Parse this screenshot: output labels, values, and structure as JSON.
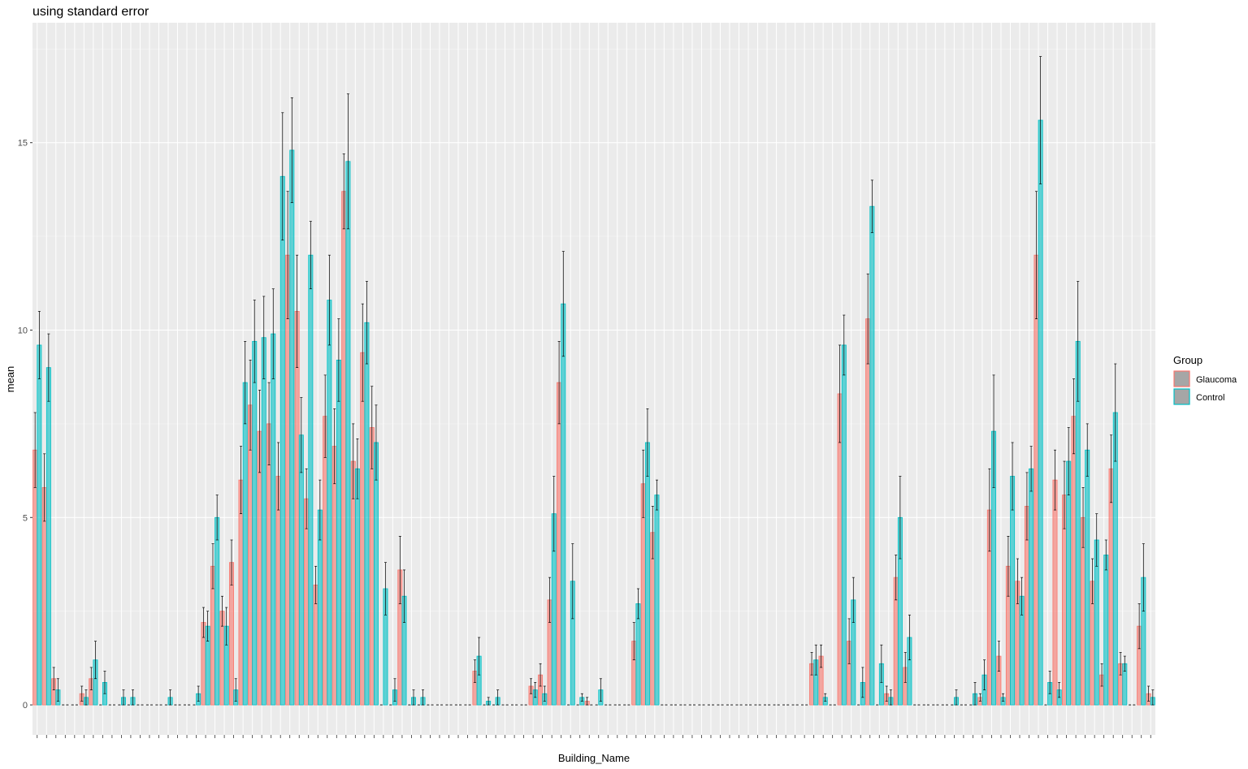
{
  "chart_data": {
    "type": "bar",
    "title": "using standard error",
    "x_label": "Building_Name",
    "y_label": "mean",
    "legend_title": "Group",
    "ylim": [
      -0.8,
      18.2
    ],
    "yticks": [
      0,
      5,
      10,
      15
    ],
    "grid": true,
    "categories": [
      null,
      null,
      null,
      null,
      null,
      null,
      null,
      null,
      null,
      null,
      null,
      null,
      null,
      null,
      null,
      null,
      null,
      null,
      null,
      null,
      null,
      null,
      null,
      null,
      null,
      null,
      null,
      null,
      null,
      null,
      null,
      null,
      null,
      null,
      null,
      null,
      null,
      null,
      null,
      null,
      null,
      null,
      null,
      null,
      null,
      null,
      null,
      null,
      null,
      null,
      null,
      null,
      null,
      null,
      null,
      null,
      null,
      null,
      null,
      null,
      null,
      null,
      null,
      null,
      null,
      null,
      null,
      null,
      null,
      null,
      null,
      null,
      null,
      null,
      null,
      null,
      null,
      null,
      null,
      null,
      null,
      null,
      null,
      null,
      null,
      null,
      null,
      null,
      null,
      null,
      null,
      null,
      null,
      null,
      null,
      null,
      null,
      null,
      null,
      null,
      null,
      null,
      null,
      null,
      null,
      null,
      null,
      null,
      null,
      null,
      null,
      null,
      null,
      null,
      null,
      null,
      null,
      null,
      null,
      null
    ],
    "series": [
      {
        "name": "Glaucoma",
        "color": "#F8766D",
        "values": [
          6.8,
          5.8,
          0.7,
          0,
          0,
          0.3,
          0.7,
          0,
          0,
          0,
          0,
          0,
          0,
          0,
          0,
          0,
          0,
          0,
          2.2,
          3.7,
          2.5,
          3.8,
          6.0,
          8.0,
          7.3,
          7.5,
          6.1,
          12.0,
          10.5,
          5.5,
          3.2,
          7.7,
          6.9,
          13.7,
          6.5,
          9.4,
          7.4,
          0,
          0,
          3.6,
          0,
          0,
          0,
          0,
          0,
          0,
          0,
          0.9,
          0,
          0,
          0,
          0,
          0,
          0.5,
          0.8,
          2.8,
          8.6,
          0,
          0,
          0.1,
          0,
          0,
          0,
          0,
          1.7,
          5.9,
          4.6,
          0,
          0,
          0,
          0,
          0,
          0,
          0,
          0,
          0,
          0,
          0,
          0,
          0,
          0,
          0,
          0,
          1.1,
          1.3,
          0,
          8.3,
          1.7,
          0,
          10.3,
          0,
          0.3,
          3.4,
          1.0,
          0,
          0,
          0,
          0,
          0,
          0,
          0,
          0.2,
          5.2,
          1.3,
          3.7,
          3.3,
          5.3,
          12.0,
          0,
          6.0,
          5.6,
          7.7,
          5.0,
          3.3,
          0.8,
          6.3,
          1.1,
          0,
          2.1,
          0.3
        ],
        "errors": [
          1.0,
          0.9,
          0.3,
          0,
          0,
          0.2,
          0.3,
          0,
          0,
          0,
          0,
          0,
          0,
          0,
          0,
          0,
          0,
          0,
          0.4,
          0.6,
          0.4,
          0.6,
          0.9,
          1.2,
          1.1,
          1.1,
          0.9,
          1.7,
          1.5,
          0.8,
          0.5,
          1.1,
          1.0,
          1.0,
          1.0,
          1.3,
          1.1,
          0,
          0,
          0.9,
          0,
          0,
          0,
          0,
          0,
          0,
          0,
          0.3,
          0,
          0,
          0,
          0,
          0,
          0.2,
          0.3,
          0.6,
          1.1,
          0,
          0,
          0.1,
          0,
          0,
          0,
          0,
          0.5,
          0.9,
          0.7,
          0,
          0,
          0,
          0,
          0,
          0,
          0,
          0,
          0,
          0,
          0,
          0,
          0,
          0,
          0,
          0,
          0.3,
          0.3,
          0,
          1.3,
          0.6,
          0,
          1.2,
          0,
          0.2,
          0.6,
          0.4,
          0,
          0,
          0,
          0,
          0,
          0,
          0,
          0.1,
          1.1,
          0.4,
          0.8,
          0.6,
          0.9,
          1.7,
          0,
          0.8,
          0.9,
          1.0,
          0.8,
          0.6,
          0.3,
          0.9,
          0.3,
          0,
          0.6,
          0.2
        ]
      },
      {
        "name": "Control",
        "color": "#00BFC4",
        "values": [
          9.6,
          9.0,
          0.4,
          0,
          0,
          0.2,
          1.2,
          0.6,
          0,
          0.2,
          0.2,
          0,
          0,
          0,
          0.2,
          0,
          0,
          0.3,
          2.1,
          5.0,
          2.1,
          0.4,
          8.6,
          9.7,
          9.8,
          9.9,
          14.1,
          14.8,
          7.2,
          12.0,
          5.2,
          10.8,
          9.2,
          14.5,
          6.3,
          10.2,
          7.0,
          3.1,
          0.4,
          2.9,
          0.2,
          0.2,
          0,
          0,
          0,
          0,
          0,
          1.3,
          0.1,
          0.2,
          0,
          0,
          0,
          0.4,
          0.3,
          5.1,
          10.7,
          3.3,
          0.2,
          0,
          0.4,
          0,
          0,
          0,
          2.7,
          7.0,
          5.6,
          0,
          0,
          0,
          0,
          0,
          0,
          0,
          0,
          0,
          0,
          0,
          0,
          0,
          0,
          0,
          0,
          1.2,
          0.2,
          0,
          9.6,
          2.8,
          0.6,
          13.3,
          1.1,
          0.2,
          5.0,
          1.8,
          0,
          0,
          0,
          0,
          0.2,
          0,
          0.3,
          0.8,
          7.3,
          0.2,
          6.1,
          2.9,
          6.3,
          15.6,
          0.6,
          0.4,
          6.5,
          9.7,
          6.8,
          4.4,
          4.0,
          7.8,
          1.1,
          0,
          3.4,
          0.2
        ],
        "errors": [
          0.9,
          0.9,
          0.3,
          0,
          0,
          0.2,
          0.5,
          0.3,
          0,
          0.2,
          0.2,
          0,
          0,
          0,
          0.2,
          0,
          0,
          0.2,
          0.4,
          0.6,
          0.5,
          0.3,
          1.1,
          1.1,
          1.1,
          1.2,
          1.7,
          1.4,
          1.0,
          0.9,
          0.8,
          1.2,
          1.1,
          1.8,
          0.8,
          1.1,
          1.0,
          0.7,
          0.3,
          0.7,
          0.2,
          0.2,
          0,
          0,
          0,
          0,
          0,
          0.5,
          0.1,
          0.2,
          0,
          0,
          0,
          0.2,
          0.2,
          1.0,
          1.4,
          1.0,
          0.1,
          0,
          0.3,
          0,
          0,
          0,
          0.4,
          0.9,
          0.4,
          0,
          0,
          0,
          0,
          0,
          0,
          0,
          0,
          0,
          0,
          0,
          0,
          0,
          0,
          0,
          0,
          0.4,
          0.1,
          0,
          0.8,
          0.6,
          0.4,
          0.7,
          0.5,
          0.2,
          1.1,
          0.6,
          0,
          0,
          0,
          0,
          0.2,
          0,
          0.3,
          0.4,
          1.5,
          0.1,
          0.9,
          0.5,
          0.6,
          1.7,
          0.3,
          0.2,
          0.9,
          1.6,
          0.7,
          0.7,
          0.4,
          1.3,
          0.2,
          0,
          0.9,
          0.2
        ]
      }
    ]
  }
}
